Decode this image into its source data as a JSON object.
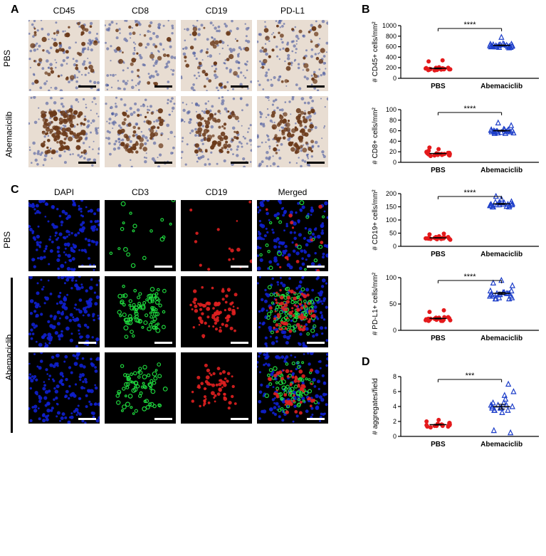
{
  "panels": {
    "A": {
      "label": "A"
    },
    "B": {
      "label": "B"
    },
    "C": {
      "label": "C"
    },
    "D": {
      "label": "D"
    }
  },
  "ihc": {
    "columns": [
      "CD45",
      "CD8",
      "CD19",
      "PD-L1"
    ],
    "rows": [
      "PBS",
      "Abemaciclib"
    ],
    "bg_color": "#e8ddd2",
    "nuclei_color": "#4a5a9e",
    "stain_color": "#6b3a1a",
    "stain_density": {
      "PBS": [
        0.18,
        0.1,
        0.12,
        0.14
      ],
      "Abemaciclib": [
        0.45,
        0.22,
        0.28,
        0.3
      ]
    }
  },
  "if": {
    "columns": [
      "DAPI",
      "CD3",
      "CD19",
      "Merged"
    ],
    "rows": [
      "PBS",
      "Abemaciclib",
      "Abemaciclib"
    ],
    "dapi_color": "#1020d0",
    "cd3_color": "#20e040",
    "cd19_color": "#e02020",
    "density": {
      "row0": {
        "dapi": 0.5,
        "cd3": 0.06,
        "cd19": 0.05
      },
      "row1": {
        "dapi": 0.5,
        "cd3": 0.3,
        "cd19": 0.28
      },
      "row2": {
        "dapi": 0.5,
        "cd3": 0.22,
        "cd19": 0.2
      }
    }
  },
  "charts": {
    "pbs_label": "PBS",
    "abm_label": "Abemaciclib",
    "pbs_color": "#e41a1c",
    "abm_color": "#1d3ec9",
    "cd45": {
      "ylabel": "# CD45+ cells/mm²",
      "ylim": [
        0,
        1000
      ],
      "ytick_step": 200,
      "sig": "****",
      "pbs": [
        180,
        165,
        200,
        150,
        170,
        210,
        195,
        160,
        175,
        155,
        190,
        180,
        165,
        175,
        185,
        170,
        160,
        200,
        175,
        180,
        170,
        165,
        175,
        340,
        320
      ],
      "abm": [
        620,
        580,
        640,
        600,
        610,
        650,
        630,
        590,
        620,
        660,
        600,
        610,
        640,
        620,
        590,
        630,
        650,
        600,
        610,
        640,
        780,
        620,
        600
      ]
    },
    "cd8": {
      "ylabel": "# CD8+ cells/mm²",
      "ylim": [
        0,
        100
      ],
      "ytick_step": 20,
      "sig": "****",
      "pbs": [
        15,
        12,
        18,
        14,
        16,
        20,
        17,
        13,
        15,
        14,
        19,
        16,
        15,
        17,
        14,
        16,
        18,
        15,
        13,
        16,
        28,
        25,
        22,
        14,
        16
      ],
      "abm": [
        58,
        55,
        62,
        60,
        57,
        63,
        56,
        59,
        61,
        58,
        60,
        62,
        57,
        59,
        55,
        58,
        60,
        62,
        56,
        59,
        75,
        70,
        58
      ]
    },
    "cd19": {
      "ylabel": "# CD19+ cells/mm²",
      "ylim": [
        0,
        200
      ],
      "ytick_step": 50,
      "sig": "****",
      "pbs": [
        30,
        28,
        35,
        32,
        25,
        38,
        30,
        27,
        33,
        29,
        31,
        34,
        28,
        32,
        30,
        29,
        35,
        32,
        30,
        31,
        48,
        45,
        28,
        30,
        32
      ],
      "abm": [
        155,
        150,
        165,
        160,
        158,
        170,
        152,
        163,
        155,
        160,
        168,
        155,
        150,
        162,
        158,
        165,
        155,
        160,
        150,
        165,
        180,
        190,
        158
      ]
    },
    "pdl1": {
      "ylabel": "# PD-L1+ cells/mm²",
      "ylim": [
        0,
        100
      ],
      "ytick_step": 50,
      "sig": "****",
      "pbs": [
        20,
        18,
        25,
        22,
        19,
        24,
        21,
        23,
        20,
        22,
        18,
        25,
        20,
        22,
        19,
        23,
        21,
        24,
        20,
        22,
        38,
        35,
        22,
        20,
        18
      ],
      "abm": [
        65,
        60,
        72,
        68,
        62,
        75,
        70,
        65,
        68,
        72,
        60,
        70,
        90,
        85,
        62,
        68,
        75,
        70,
        65,
        68,
        95,
        60,
        70
      ]
    },
    "aggregates": {
      "ylabel": "# aggregates/field",
      "ylim": [
        0,
        8
      ],
      "ytick_step": 2,
      "sig": "***",
      "pbs": [
        1.5,
        1.2,
        1.8,
        1.4,
        1.6,
        2.0,
        1.3,
        1.5,
        1.4,
        1.7,
        1.5,
        1.6,
        1.8,
        1.4,
        1.5,
        2.2,
        1.3
      ],
      "abm": [
        3.8,
        4.2,
        3.5,
        4.5,
        3.2,
        4.0,
        5.0,
        3.8,
        4.2,
        3.5,
        5.5,
        4.0,
        3.8,
        4.5,
        6.0,
        3.5,
        4.2,
        0.5,
        0.8,
        7.0
      ]
    }
  }
}
